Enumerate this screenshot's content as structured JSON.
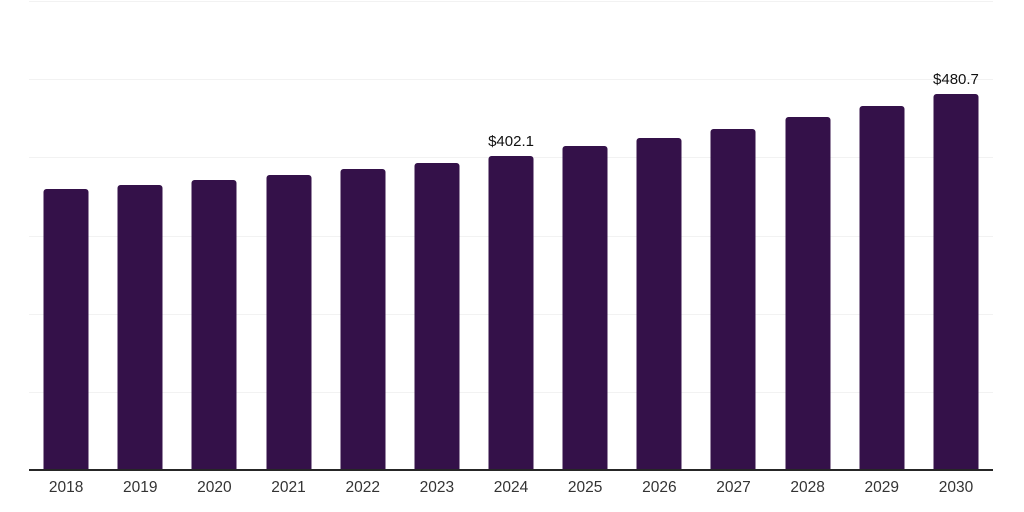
{
  "chart_data": {
    "type": "bar",
    "categories": [
      "2018",
      "2019",
      "2020",
      "2021",
      "2022",
      "2023",
      "2024",
      "2025",
      "2026",
      "2027",
      "2028",
      "2029",
      "2030"
    ],
    "values": [
      359.4,
      365.0,
      370.6,
      377.8,
      385.4,
      393.2,
      402.1,
      414.1,
      424.3,
      436.5,
      451.2,
      465.5,
      480.7
    ],
    "data_labels": {
      "2024": "$402.1",
      "2030": "$480.7"
    },
    "title": "",
    "xlabel": "",
    "ylabel": "",
    "ylim": [
      0,
      600
    ],
    "gridline_values": [
      100,
      200,
      300,
      400,
      500,
      600
    ],
    "grid": true,
    "legend": "none",
    "colors": {
      "bar": "#341149",
      "gridline": "#f2f2f2",
      "axis_line": "#262626",
      "tick_label": "#333333",
      "data_label": "#111111",
      "background": "#ffffff"
    }
  }
}
